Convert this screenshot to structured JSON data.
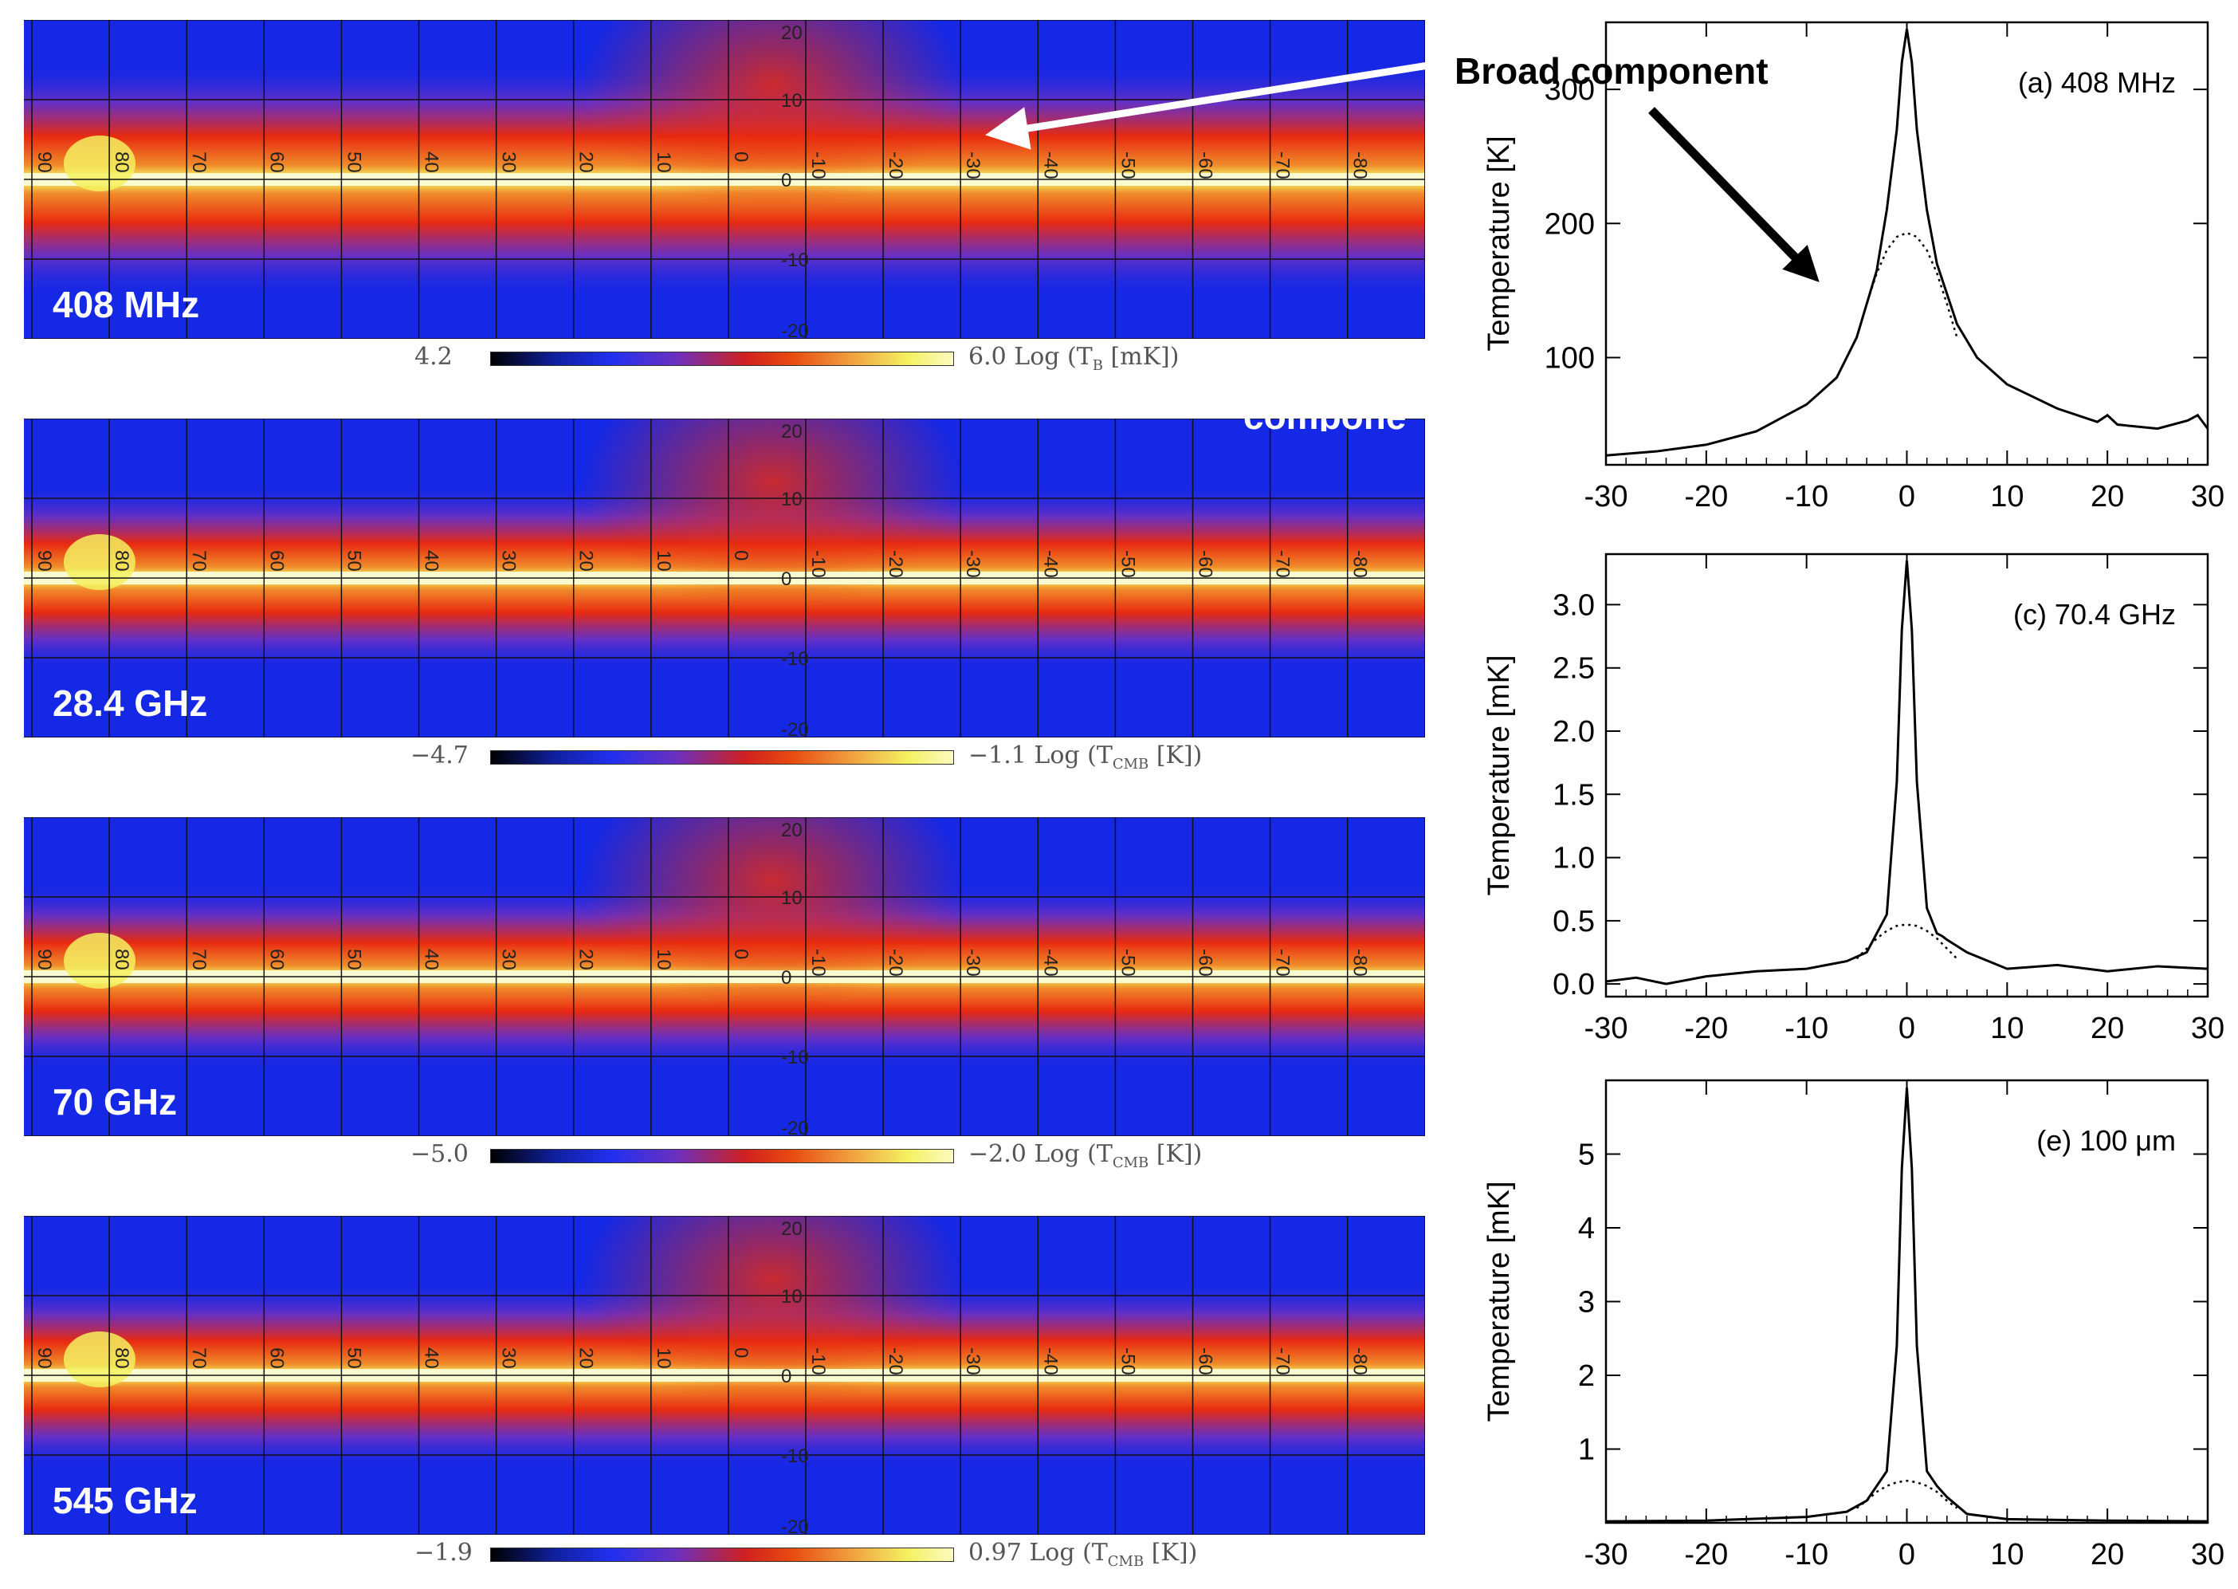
{
  "maps": [
    {
      "label": "408 MHz",
      "cb_min": "4.2",
      "cb_max": "6.0",
      "cb_unit_pre": "Log (T",
      "cb_unit_sub": "B",
      "cb_unit_post": " [mK])"
    },
    {
      "label": "28.4 GHz",
      "cb_min": "−4.7",
      "cb_max": "−1.1",
      "cb_unit_pre": "Log (T",
      "cb_unit_sub": "CMB",
      "cb_unit_post": " [K])"
    },
    {
      "label": "70 GHz",
      "cb_min": "−5.0",
      "cb_max": "−2.0",
      "cb_unit_pre": "Log (T",
      "cb_unit_sub": "CMB",
      "cb_unit_post": " [K])"
    },
    {
      "label": "545 GHz",
      "cb_min": "−1.9",
      "cb_max": "0.97",
      "cb_unit_pre": "Log (T",
      "cb_unit_sub": "CMB",
      "cb_unit_post": " [K])"
    }
  ],
  "map_longitude_labels": [
    "90",
    "80",
    "70",
    "60",
    "50",
    "40",
    "30",
    "20",
    "10",
    "0",
    "-10",
    "-20",
    "-30",
    "-40",
    "-50",
    "-60",
    "-70",
    "-80",
    "-90"
  ],
  "map_latitude_labels": [
    "20",
    "10",
    "0",
    "-10",
    "-20"
  ],
  "annotation": {
    "broad_component": "Broad component",
    "clipped_text": "compone"
  },
  "colors": {
    "map_background": "#1428e6",
    "map_band_red": "#e82a10",
    "map_band_orange": "#f08a2a",
    "map_band_yellow": "#f4f060",
    "map_grid": "#111111"
  },
  "chart_data": [
    {
      "type": "line",
      "title": "(a) 408 MHz",
      "xlabel": "",
      "ylabel": "Temperature [K]",
      "xlim": [
        -30,
        30
      ],
      "ylim": [
        20,
        350
      ],
      "xticks": [
        "-30",
        "-20",
        "-10",
        "0",
        "10",
        "20",
        "30"
      ],
      "yticks": [
        {
          "v": 100,
          "t": "100"
        },
        {
          "v": 200,
          "t": "200"
        },
        {
          "v": 300,
          "t": "300"
        }
      ],
      "series": [
        {
          "name": "profile",
          "style": "solid",
          "x": [
            -30,
            -25,
            -20,
            -15,
            -10,
            -7,
            -5,
            -3,
            -2,
            -1,
            -0.5,
            0,
            0.5,
            1,
            2,
            3,
            5,
            7,
            10,
            15,
            19,
            20,
            21,
            25,
            28,
            29,
            30
          ],
          "y": [
            27,
            30,
            35,
            45,
            65,
            85,
            115,
            165,
            210,
            270,
            320,
            345,
            320,
            270,
            210,
            170,
            125,
            100,
            80,
            62,
            52,
            57,
            50,
            47,
            53,
            57,
            47
          ]
        },
        {
          "name": "broad component",
          "style": "dotted",
          "x": [
            -5,
            -4,
            -3,
            -2,
            -1,
            0,
            1,
            2,
            3,
            4,
            5
          ],
          "y": [
            115,
            140,
            163,
            180,
            190,
            193,
            190,
            180,
            163,
            140,
            115
          ]
        }
      ]
    },
    {
      "type": "line",
      "title": "(c) 70.4 GHz",
      "xlabel": "",
      "ylabel": "Temperature [mK]",
      "xlim": [
        -30,
        30
      ],
      "ylim": [
        -0.1,
        3.4
      ],
      "xticks": [
        "-30",
        "-20",
        "-10",
        "0",
        "10",
        "20",
        "30"
      ],
      "yticks": [
        {
          "v": 0,
          "t": "0.0"
        },
        {
          "v": 0.5,
          "t": "0.5"
        },
        {
          "v": 1,
          "t": "1.0"
        },
        {
          "v": 1.5,
          "t": "1.5"
        },
        {
          "v": 2,
          "t": "2.0"
        },
        {
          "v": 2.5,
          "t": "2.5"
        },
        {
          "v": 3,
          "t": "3.0"
        }
      ],
      "series": [
        {
          "name": "profile",
          "style": "solid",
          "x": [
            -30,
            -27,
            -24,
            -20,
            -15,
            -10,
            -6,
            -4,
            -2,
            -1,
            -0.5,
            0,
            0.5,
            1,
            2,
            3,
            3.5,
            4,
            6,
            10,
            15,
            20,
            25,
            30
          ],
          "y": [
            0.02,
            0.05,
            0.0,
            0.06,
            0.1,
            0.12,
            0.18,
            0.25,
            0.55,
            1.6,
            2.8,
            3.35,
            2.8,
            1.6,
            0.6,
            0.4,
            0.38,
            0.35,
            0.25,
            0.12,
            0.15,
            0.1,
            0.14,
            0.12
          ]
        },
        {
          "name": "broad component",
          "style": "dotted",
          "x": [
            -5,
            -4,
            -3,
            -2,
            -1,
            0,
            1,
            2,
            3,
            4,
            5
          ],
          "y": [
            0.2,
            0.28,
            0.36,
            0.42,
            0.46,
            0.47,
            0.46,
            0.42,
            0.36,
            0.28,
            0.2
          ]
        }
      ]
    },
    {
      "type": "line",
      "title": "(e) 100 μm",
      "xlabel": "",
      "ylabel": "Temperature [mK]",
      "xlim": [
        -30,
        30
      ],
      "ylim": [
        0,
        6
      ],
      "xticks": [
        "-30",
        "-20",
        "-10",
        "0",
        "10",
        "20",
        "30"
      ],
      "yticks": [
        {
          "v": 1,
          "t": "1"
        },
        {
          "v": 2,
          "t": "2"
        },
        {
          "v": 3,
          "t": "3"
        },
        {
          "v": 4,
          "t": "4"
        },
        {
          "v": 5,
          "t": "5"
        }
      ],
      "series": [
        {
          "name": "profile",
          "style": "solid",
          "x": [
            -30,
            -20,
            -10,
            -6,
            -4,
            -2,
            -1,
            -0.5,
            0,
            0.5,
            1,
            2,
            3,
            4,
            6,
            10,
            20,
            30
          ],
          "y": [
            0.02,
            0.03,
            0.08,
            0.15,
            0.3,
            0.7,
            2.4,
            4.8,
            5.9,
            4.8,
            2.4,
            0.7,
            0.5,
            0.35,
            0.12,
            0.05,
            0.03,
            0.02
          ]
        },
        {
          "name": "broad component",
          "style": "dotted",
          "x": [
            -5,
            -4,
            -3,
            -2,
            -1,
            0,
            1,
            2,
            3,
            4,
            5
          ],
          "y": [
            0.2,
            0.3,
            0.42,
            0.5,
            0.55,
            0.57,
            0.55,
            0.5,
            0.42,
            0.3,
            0.2
          ]
        }
      ]
    }
  ]
}
